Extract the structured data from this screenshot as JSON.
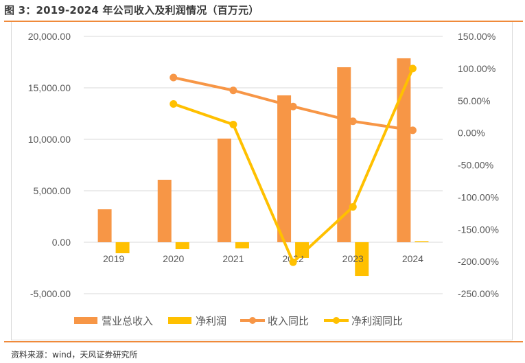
{
  "header": {
    "title": "图 3：2019-2024 年公司收入及利润情况（百万元）"
  },
  "footer": {
    "source": "资料来源：wind，天风证券研究所"
  },
  "colors": {
    "revenue": "#f79646",
    "net_profit": "#ffc000",
    "revenue_yoy": "#f79646",
    "net_profit_yoy": "#ffc000",
    "accent_rule": "#f08a3a",
    "gridline": "#d9d9d9",
    "axis_text": "#595959"
  },
  "chart_data": {
    "type": "bar+line",
    "title": "2019-2024 年公司收入及利润情况（百万元）",
    "categories": [
      "2019",
      "2020",
      "2021",
      "2022",
      "2023",
      "2024"
    ],
    "series": [
      {
        "name": "营业总收入",
        "type": "bar",
        "axis": "left",
        "values": [
          3200,
          6070,
          10070,
          14270,
          17000,
          17870
        ]
      },
      {
        "name": "净利润",
        "type": "bar",
        "axis": "left",
        "values": [
          -1070,
          -670,
          -600,
          -1530,
          -3270,
          100
        ]
      },
      {
        "name": "收入同比",
        "type": "line",
        "axis": "right",
        "values": [
          null,
          86,
          66,
          41,
          18,
          4
        ]
      },
      {
        "name": "净利润同比",
        "type": "line",
        "axis": "right",
        "values": [
          null,
          45,
          13,
          -201,
          -115,
          100
        ]
      }
    ],
    "left_axis": {
      "ylim": [
        -5000,
        20000
      ],
      "ticks": [
        "20,000.00",
        "15,000.00",
        "10,000.00",
        "5,000.00",
        "0.00",
        "-5,000.00"
      ]
    },
    "right_axis": {
      "ylim": [
        -250,
        150
      ],
      "unit": "%",
      "ticks": [
        "150.00%",
        "100.00%",
        "50.00%",
        "0.00%",
        "-50.00%",
        "-100.00%",
        "-150.00%",
        "-200.00%",
        "-250.00%"
      ]
    },
    "xlabel": "",
    "ylabel": "",
    "grid": true,
    "legend_position": "bottom",
    "legend": [
      "营业总收入",
      "净利润",
      "收入同比",
      "净利润同比"
    ]
  }
}
